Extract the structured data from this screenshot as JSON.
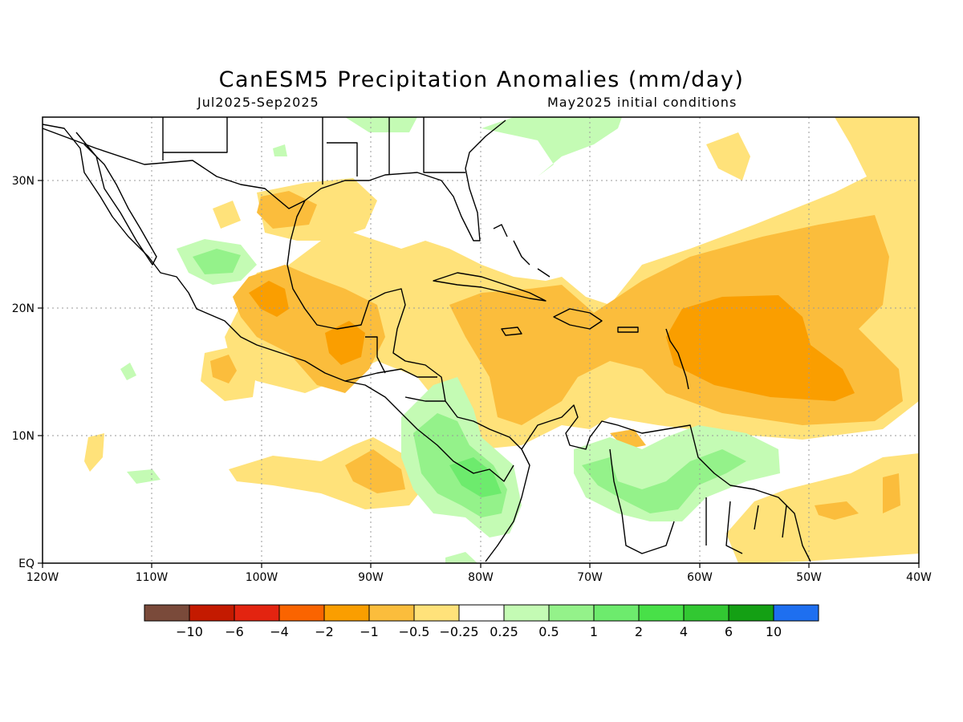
{
  "title": "CanESM5 Precipitation Anomalies (mm/day)",
  "period": "Jul2025-Sep2025",
  "init": "May2025 initial conditions",
  "map": {
    "lon_range": [
      -120,
      -40
    ],
    "lat_range": [
      0,
      35
    ],
    "x_ticks": [
      "120W",
      "110W",
      "100W",
      "90W",
      "80W",
      "70W",
      "60W",
      "50W",
      "40W"
    ],
    "y_ticks": [
      "EQ",
      "10N",
      "20N",
      "30N"
    ],
    "grid": "dotted"
  },
  "colorbar": {
    "colors": [
      "#7a4a3a",
      "#c41a00",
      "#e32410",
      "#fa6400",
      "#fa9e00",
      "#fbbd3c",
      "#ffe27a",
      "#ffffff",
      "#c4fbb4",
      "#94f28a",
      "#6deb6d",
      "#48e048",
      "#32c832",
      "#14a014",
      "#1e6ff0"
    ],
    "labels": [
      "-10",
      "-6",
      "-4",
      "-2",
      "-1",
      "-0.5",
      "-0.25",
      "0.25",
      "0.5",
      "1",
      "2",
      "4",
      "6",
      "10"
    ]
  },
  "colors": {
    "brown_light": "#ffe27a",
    "brown_mid": "#fbbd3c",
    "brown_dark": "#fa9e00",
    "green_light": "#c4fbb4",
    "green_mid": "#94f28a",
    "green_dark": "#6deb6d"
  }
}
